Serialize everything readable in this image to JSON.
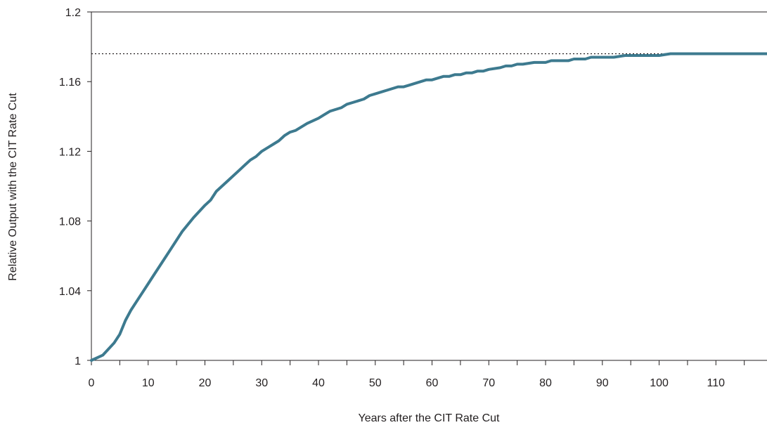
{
  "chart_data": {
    "type": "line",
    "title": "",
    "xlabel": "Years after the CIT Rate Cut",
    "ylabel": "Relative Output with the CIT Rate Cut",
    "xlim": [
      0,
      119
    ],
    "ylim": [
      1,
      1.2
    ],
    "x_ticks": [
      0,
      10,
      20,
      30,
      40,
      50,
      60,
      70,
      80,
      90,
      100,
      110
    ],
    "x_tick_labels": [
      "0",
      "10",
      "20",
      "30",
      "40",
      "50",
      "60",
      "70",
      "80",
      "90",
      "100",
      "110"
    ],
    "y_ticks": [
      1,
      1.04,
      1.08,
      1.12,
      1.16,
      1.2
    ],
    "y_tick_labels": [
      "1",
      "1.04",
      "1.08",
      "1.12",
      "1.16",
      "1.2"
    ],
    "grid": false,
    "legend": "none",
    "steady_state": {
      "y": 1.176,
      "style": "dotted"
    },
    "series": [
      {
        "color": "#3d7a8f",
        "x": [
          0,
          2,
          4,
          5,
          6,
          7,
          8,
          9,
          10,
          11,
          12,
          14,
          16,
          18,
          20,
          21,
          22,
          24,
          26,
          27,
          28,
          29,
          30,
          32,
          33,
          34,
          35,
          36,
          38,
          40,
          41,
          42,
          44,
          45,
          46,
          48,
          49,
          50,
          52,
          54,
          55,
          56,
          57,
          58,
          59,
          60,
          62,
          63,
          64,
          65,
          66,
          67,
          68,
          69,
          70,
          72,
          73,
          74,
          75,
          76,
          78,
          80,
          81,
          82,
          84,
          85,
          86,
          87,
          88,
          90,
          92,
          94,
          96,
          98,
          100,
          102,
          104,
          106,
          108,
          110,
          112,
          114,
          116,
          119
        ],
        "y": [
          1.0,
          1.003,
          1.01,
          1.015,
          1.023,
          1.029,
          1.034,
          1.039,
          1.044,
          1.049,
          1.054,
          1.064,
          1.074,
          1.082,
          1.089,
          1.092,
          1.097,
          1.103,
          1.109,
          1.112,
          1.115,
          1.117,
          1.12,
          1.124,
          1.126,
          1.129,
          1.131,
          1.132,
          1.136,
          1.139,
          1.141,
          1.143,
          1.145,
          1.147,
          1.148,
          1.15,
          1.152,
          1.153,
          1.155,
          1.157,
          1.157,
          1.158,
          1.159,
          1.16,
          1.161,
          1.161,
          1.163,
          1.163,
          1.164,
          1.164,
          1.165,
          1.165,
          1.166,
          1.166,
          1.167,
          1.168,
          1.169,
          1.169,
          1.17,
          1.17,
          1.171,
          1.171,
          1.172,
          1.172,
          1.172,
          1.173,
          1.173,
          1.173,
          1.174,
          1.174,
          1.174,
          1.175,
          1.175,
          1.175,
          1.175,
          1.176,
          1.176,
          1.176,
          1.176,
          1.176,
          1.176,
          1.176,
          1.176,
          1.176
        ]
      }
    ]
  }
}
